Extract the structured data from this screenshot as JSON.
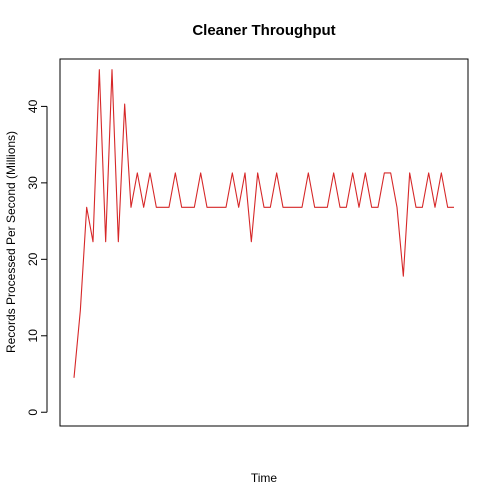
{
  "chart_data": {
    "type": "line",
    "title": "Cleaner Throughput",
    "xlabel": "Time",
    "ylabel": "Records Processed Per Second (Millions)",
    "ylim": [
      -1.8,
      46.2
    ],
    "yticks": [
      0,
      10,
      20,
      30,
      40
    ],
    "x_tick_labels_shown": false,
    "grid": false,
    "series": [
      {
        "color": "#d62728",
        "values": [
          4.5,
          13.3,
          26.8,
          22.3,
          44.8,
          22.3,
          44.8,
          22.3,
          40.3,
          26.8,
          31.3,
          26.8,
          31.3,
          26.8,
          26.8,
          26.8,
          31.3,
          26.8,
          26.8,
          26.8,
          31.3,
          26.8,
          26.8,
          26.8,
          26.8,
          31.3,
          26.8,
          31.3,
          22.3,
          31.3,
          26.8,
          26.8,
          31.3,
          26.8,
          26.8,
          26.8,
          26.8,
          31.3,
          26.8,
          26.8,
          26.8,
          31.3,
          26.8,
          26.8,
          31.3,
          26.8,
          31.3,
          26.8,
          26.8,
          31.3,
          31.3,
          26.8,
          17.8,
          31.3,
          26.8,
          26.8,
          31.3,
          26.8,
          31.3,
          26.8,
          26.8
        ]
      }
    ]
  }
}
